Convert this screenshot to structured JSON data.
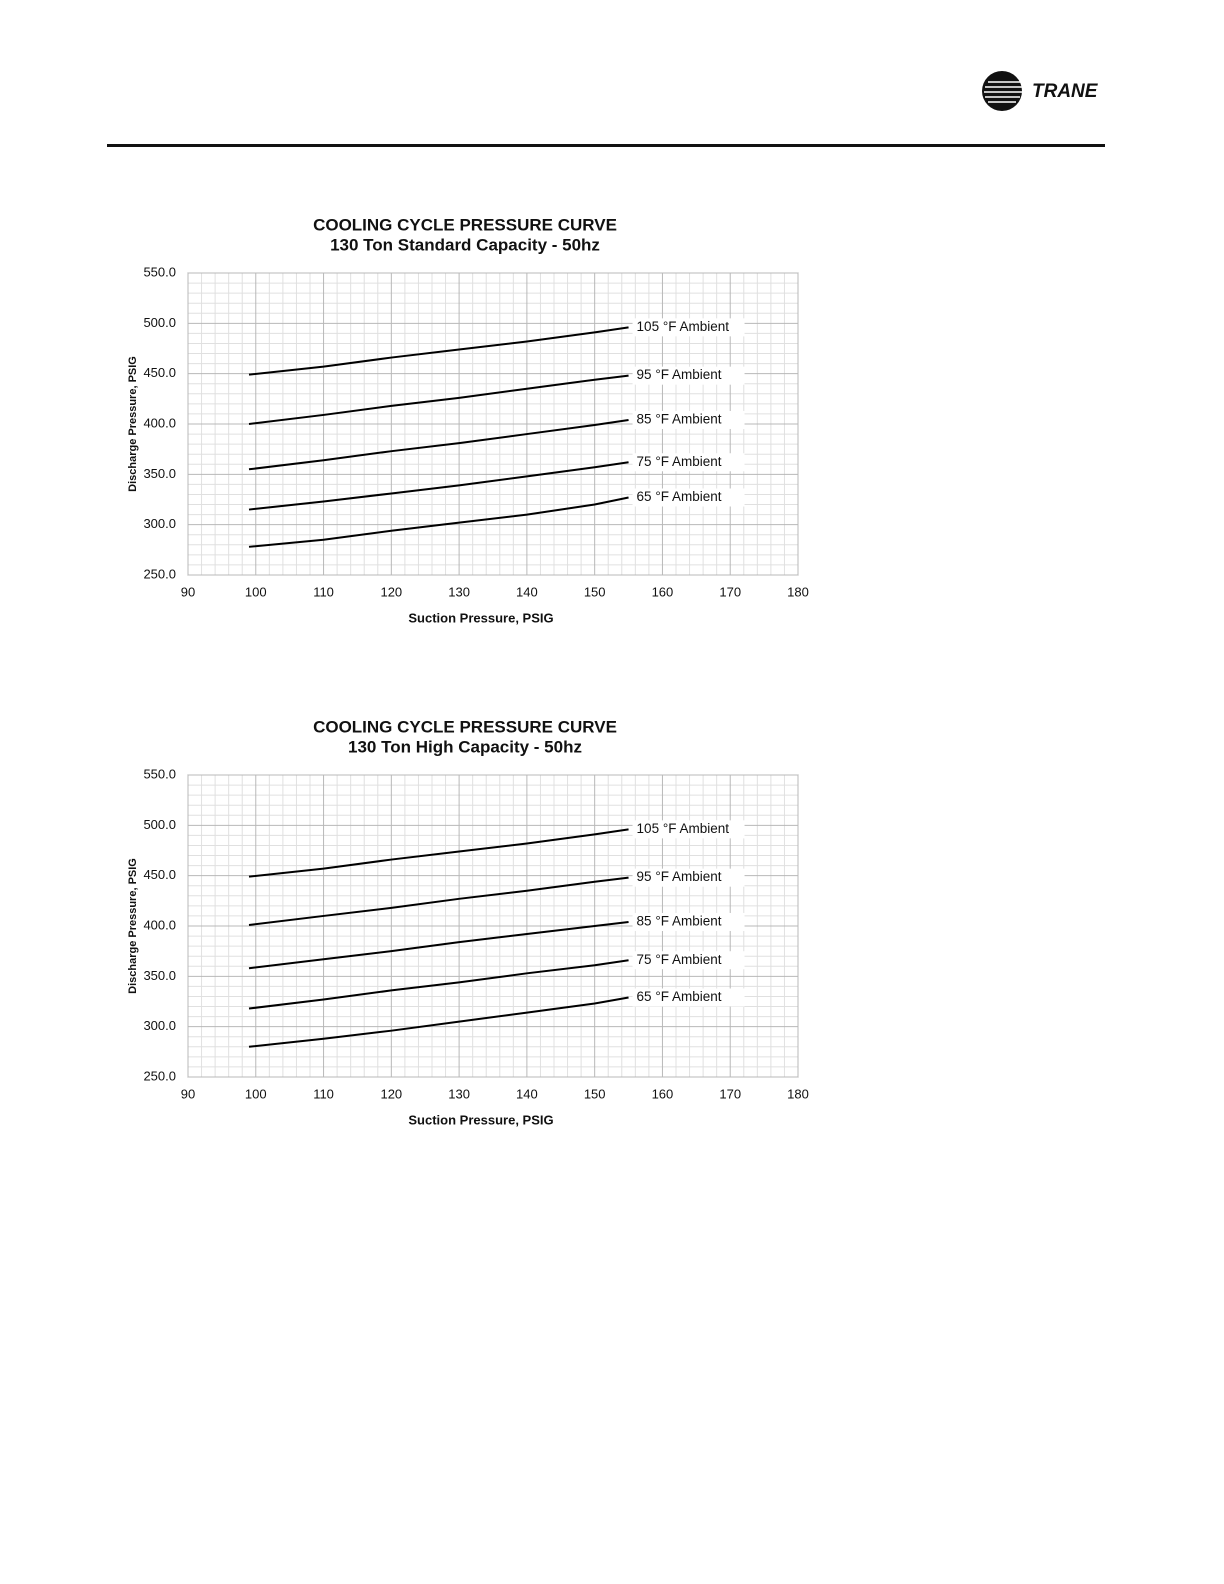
{
  "header": {
    "brand": "TRANE"
  },
  "chart_data": [
    {
      "type": "line",
      "title": "COOLING CYCLE PRESSURE CURVE",
      "subtitle": "130 Ton Standard Capacity - 50hz",
      "x_label": "Suction Pressure, PSIG",
      "y_label": "Discharge Pressure, PSIG",
      "xlim": [
        90,
        180
      ],
      "xticks": [
        90,
        100,
        110,
        120,
        130,
        140,
        150,
        160,
        170,
        180
      ],
      "ylim": [
        250,
        550
      ],
      "yticks": [
        {
          "value": 250,
          "label": "250.0"
        },
        {
          "value": 300,
          "label": "300.0"
        },
        {
          "value": 350,
          "label": "350.0"
        },
        {
          "value": 400,
          "label": "400.0"
        },
        {
          "value": 450,
          "label": "450.0"
        },
        {
          "value": 500,
          "label": "500.0"
        },
        {
          "value": 550,
          "label": "550.0"
        }
      ],
      "grid": true,
      "x": [
        99,
        110,
        120,
        130,
        140,
        150,
        155
      ],
      "series": [
        {
          "name": "105 °F Ambient",
          "color": "#000000",
          "values": [
            449,
            457,
            466,
            474,
            482,
            491,
            496
          ]
        },
        {
          "name": "95 °F Ambient",
          "color": "#000000",
          "values": [
            400,
            409,
            418,
            426,
            435,
            444,
            448
          ]
        },
        {
          "name": "85 °F Ambient",
          "color": "#000000",
          "values": [
            355,
            364,
            373,
            381,
            390,
            399,
            404
          ]
        },
        {
          "name": "75 °F Ambient",
          "color": "#000000",
          "values": [
            315,
            323,
            331,
            339,
            348,
            357,
            362
          ]
        },
        {
          "name": "65 °F Ambient",
          "color": "#000000",
          "values": [
            278,
            285,
            294,
            302,
            310,
            320,
            327
          ]
        }
      ]
    },
    {
      "type": "line",
      "title": "COOLING CYCLE PRESSURE CURVE",
      "subtitle": "130 Ton High Capacity - 50hz",
      "x_label": "Suction Pressure, PSIG",
      "y_label": "Discharge Pressure, PSIG",
      "xlim": [
        90,
        180
      ],
      "xticks": [
        90,
        100,
        110,
        120,
        130,
        140,
        150,
        160,
        170,
        180
      ],
      "ylim": [
        250,
        550
      ],
      "yticks": [
        {
          "value": 250,
          "label": "250.0"
        },
        {
          "value": 300,
          "label": "300.0"
        },
        {
          "value": 350,
          "label": "350.0"
        },
        {
          "value": 400,
          "label": "400.0"
        },
        {
          "value": 450,
          "label": "450.0"
        },
        {
          "value": 500,
          "label": "500.0"
        },
        {
          "value": 550,
          "label": "550.0"
        }
      ],
      "grid": true,
      "x": [
        99,
        110,
        120,
        130,
        140,
        150,
        155
      ],
      "series": [
        {
          "name": "105 °F Ambient",
          "color": "#000000",
          "values": [
            449,
            457,
            466,
            474,
            482,
            491,
            496
          ]
        },
        {
          "name": "95 °F Ambient",
          "color": "#000000",
          "values": [
            401,
            410,
            418,
            427,
            435,
            444,
            448
          ]
        },
        {
          "name": "85 °F Ambient",
          "color": "#000000",
          "values": [
            358,
            367,
            375,
            384,
            392,
            400,
            404
          ]
        },
        {
          "name": "75 °F Ambient",
          "color": "#000000",
          "values": [
            318,
            327,
            336,
            344,
            353,
            361,
            366
          ]
        },
        {
          "name": "65 °F Ambient",
          "color": "#000000",
          "values": [
            280,
            288,
            296,
            305,
            314,
            323,
            329
          ]
        }
      ]
    }
  ]
}
